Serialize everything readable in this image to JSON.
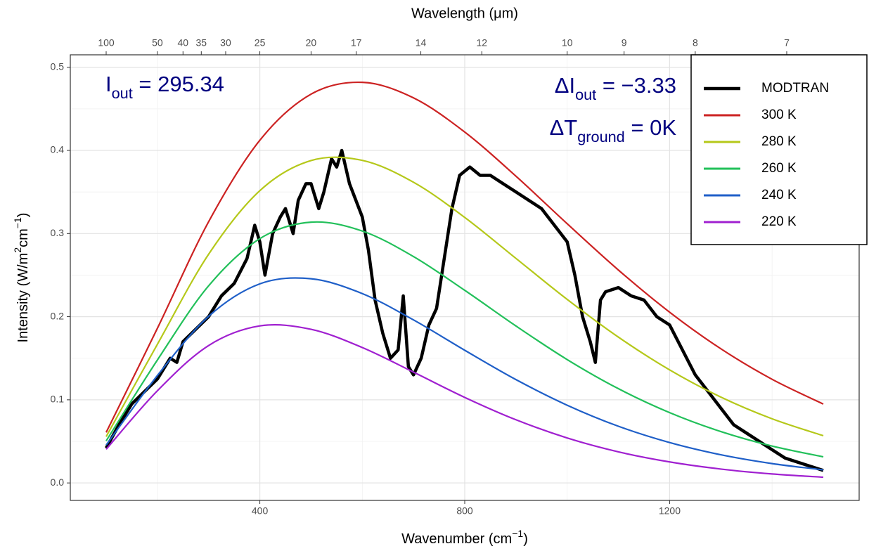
{
  "chart_data": {
    "type": "line",
    "xlabel": [
      "Wavenumber (cm",
      "−1",
      ")"
    ],
    "ylabel": [
      "Intensity (W/m",
      "2",
      "cm",
      "−1",
      ")"
    ],
    "x2label": "Wavelength (μm)",
    "annotations": [
      [
        "I",
        "out",
        " = 295.34"
      ],
      [
        "ΔI",
        "out",
        " = −3.33"
      ],
      [
        "ΔT",
        "ground",
        " = 0K"
      ]
    ],
    "xlim": [
      30,
      1570
    ],
    "ylim": [
      -0.021,
      0.515
    ],
    "xticks": [
      400,
      800,
      1200
    ],
    "xminor": [
      200,
      600,
      1000,
      1400
    ],
    "yticks": [
      {
        "value": 0,
        "label": "0.0"
      },
      0.1,
      0.2,
      0.3,
      0.4,
      0.5
    ],
    "yminor": [
      0.05,
      0.15,
      0.25,
      0.35,
      0.45
    ],
    "x2ticks": [
      {
        "value": 100,
        "label": "100"
      },
      {
        "value": 200,
        "label": "50"
      },
      {
        "value": 250,
        "label": "40"
      },
      {
        "value": 285.7,
        "label": "35"
      },
      {
        "value": 333.3,
        "label": "30"
      },
      {
        "value": 400,
        "label": "25"
      },
      {
        "value": 500,
        "label": "20"
      },
      {
        "value": 588.2,
        "label": "17"
      },
      {
        "value": 714.3,
        "label": "14"
      },
      {
        "value": 833.3,
        "label": "12"
      },
      {
        "value": 1000,
        "label": "10"
      },
      {
        "value": 1111.1,
        "label": "9"
      },
      {
        "value": 1250,
        "label": "8"
      },
      {
        "value": 1428.6,
        "label": "7"
      }
    ],
    "grid": true,
    "legend": "top-right",
    "series": [
      {
        "name": "MODTRAN",
        "color": "#000000",
        "x": [
          100,
          125,
          150,
          175,
          200,
          225,
          238,
          250,
          275,
          300,
          325,
          350,
          375,
          390,
          400,
          410,
          425,
          440,
          450,
          465,
          475,
          490,
          500,
          515,
          525,
          540,
          550,
          560,
          575,
          600,
          612,
          625,
          640,
          655,
          670,
          680,
          690,
          700,
          715,
          730,
          745,
          760,
          775,
          790,
          810,
          830,
          850,
          875,
          900,
          925,
          950,
          975,
          1000,
          1015,
          1030,
          1045,
          1055,
          1065,
          1075,
          1100,
          1125,
          1150,
          1175,
          1200,
          1225,
          1250,
          1275,
          1300,
          1325,
          1350,
          1375,
          1400,
          1425,
          1450,
          1475,
          1500
        ],
        "values": [
          0.042,
          0.07,
          0.095,
          0.11,
          0.125,
          0.15,
          0.145,
          0.17,
          0.185,
          0.2,
          0.225,
          0.24,
          0.27,
          0.31,
          0.29,
          0.25,
          0.3,
          0.32,
          0.33,
          0.3,
          0.34,
          0.36,
          0.36,
          0.33,
          0.35,
          0.39,
          0.38,
          0.4,
          0.36,
          0.32,
          0.28,
          0.22,
          0.18,
          0.15,
          0.16,
          0.225,
          0.14,
          0.13,
          0.15,
          0.19,
          0.21,
          0.27,
          0.33,
          0.37,
          0.38,
          0.37,
          0.37,
          0.36,
          0.35,
          0.34,
          0.33,
          0.31,
          0.29,
          0.25,
          0.2,
          0.17,
          0.145,
          0.22,
          0.23,
          0.235,
          0.225,
          0.22,
          0.2,
          0.19,
          0.16,
          0.13,
          0.11,
          0.09,
          0.07,
          0.06,
          0.05,
          0.04,
          0.03,
          0.025,
          0.02,
          0.015
        ]
      },
      {
        "name": "300 K",
        "color": "#cc2222",
        "x": [
          100,
          200,
          300,
          400,
          500,
          600,
          700,
          800,
          900,
          1000,
          1100,
          1200,
          1300,
          1400,
          1500
        ],
        "values": [
          0.0608,
          0.186,
          0.3142,
          0.4122,
          0.4677,
          0.4819,
          0.4632,
          0.4221,
          0.369,
          0.3118,
          0.2561,
          0.2054,
          0.1614,
          0.1247,
          0.0949
        ]
      },
      {
        "name": "280 K",
        "color": "#b5c81a",
        "x": [
          100,
          200,
          300,
          400,
          500,
          600,
          700,
          800,
          900,
          1000,
          1100,
          1200,
          1300,
          1400,
          1500
        ],
        "values": [
          0.0557,
          0.1668,
          0.2751,
          0.3516,
          0.3878,
          0.388,
          0.3617,
          0.3194,
          0.2701,
          0.2208,
          0.1754,
          0.136,
          0.1033,
          0.0772,
          0.0568
        ]
      },
      {
        "name": "260 K",
        "color": "#22c05a",
        "x": [
          100,
          200,
          300,
          400,
          500,
          600,
          700,
          800,
          900,
          1000,
          1100,
          1200,
          1300,
          1400,
          1500
        ],
        "values": [
          0.0506,
          0.1479,
          0.2371,
          0.2939,
          0.3137,
          0.303,
          0.2723,
          0.2317,
          0.1888,
          0.1484,
          0.1134,
          0.0846,
          0.0618,
          0.0444,
          0.0314
        ]
      },
      {
        "name": "240 K",
        "color": "#1f5fc8",
        "x": [
          100,
          200,
          300,
          400,
          500,
          600,
          700,
          800,
          900,
          1000,
          1100,
          1200,
          1300,
          1400,
          1500
        ],
        "values": [
          0.0456,
          0.1292,
          0.2004,
          0.2395,
          0.2456,
          0.2278,
          0.1961,
          0.1596,
          0.1243,
          0.0935,
          0.0682,
          0.0486,
          0.0339,
          0.0233,
          0.0157
        ]
      },
      {
        "name": "220 K",
        "color": "#a020d0",
        "x": [
          100,
          200,
          300,
          400,
          500,
          600,
          700,
          800,
          900,
          1000,
          1100,
          1200,
          1300,
          1400,
          1500
        ],
        "values": [
          0.0405,
          0.1109,
          0.1653,
          0.1889,
          0.1848,
          0.1629,
          0.1333,
          0.1029,
          0.076,
          0.0541,
          0.0374,
          0.0253,
          0.0167,
          0.0108,
          0.0069
        ]
      }
    ]
  }
}
